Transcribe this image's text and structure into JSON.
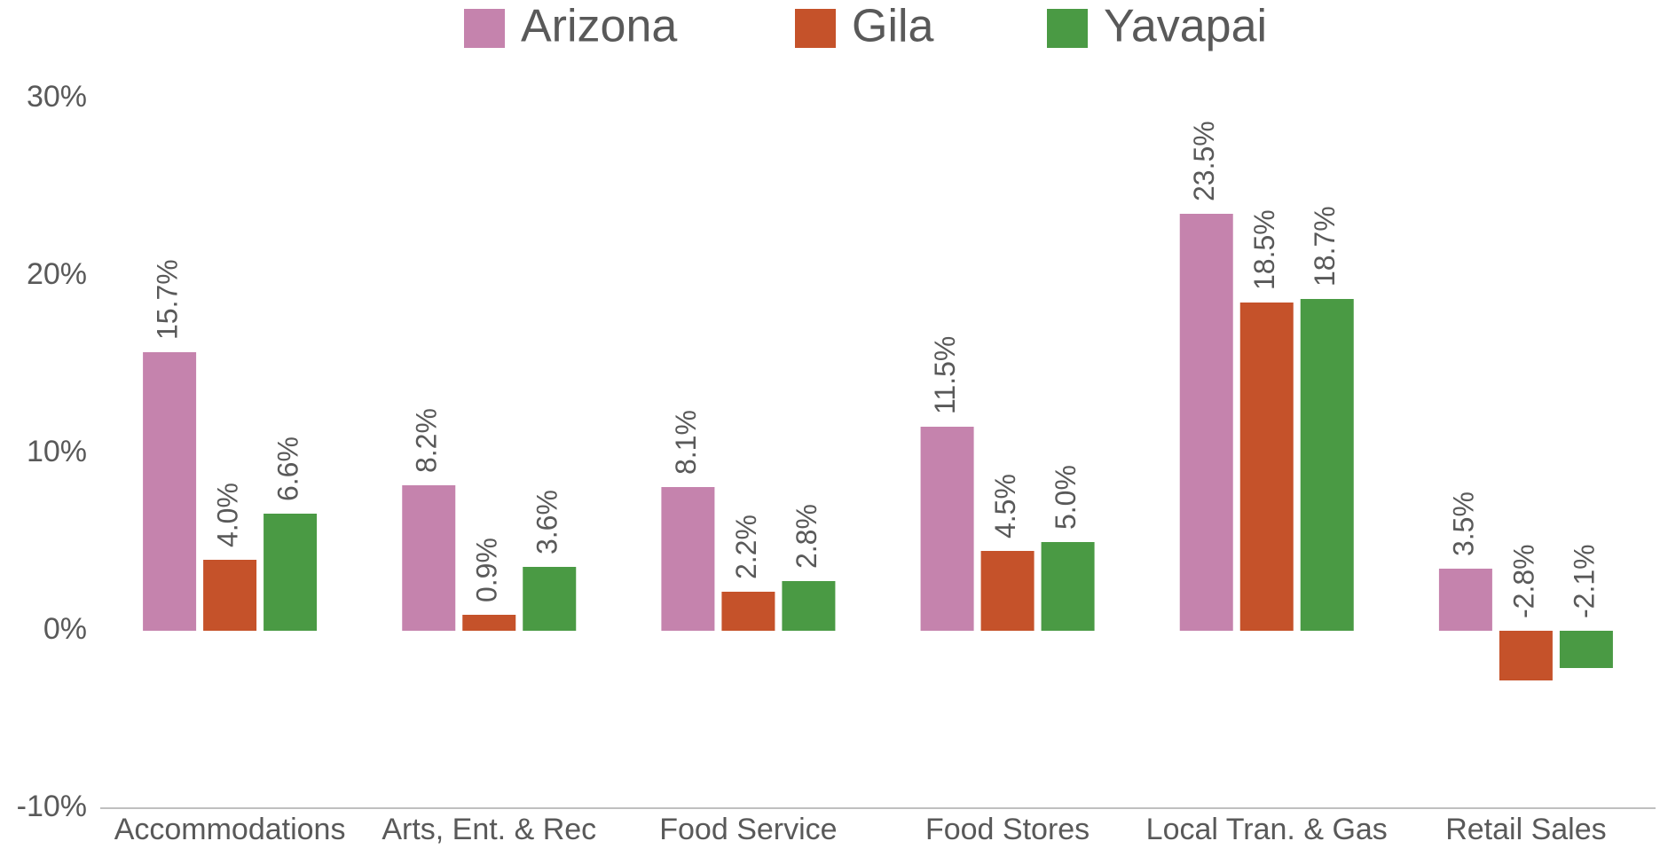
{
  "chart_data": {
    "type": "bar",
    "categories": [
      "Accommodations",
      "Arts, Ent. & Rec",
      "Food Service",
      "Food Stores",
      "Local Tran. & Gas",
      "Retail Sales"
    ],
    "series": [
      {
        "name": "Arizona",
        "color": "#c583ad",
        "values": [
          15.7,
          8.2,
          8.1,
          11.5,
          23.5,
          3.5
        ],
        "value_labels": [
          "15.7%",
          "8.2%",
          "8.1%",
          "11.5%",
          "23.5%",
          "3.5%"
        ]
      },
      {
        "name": "Gila",
        "color": "#c5522a",
        "values": [
          4.0,
          0.9,
          2.2,
          4.5,
          18.5,
          -2.8
        ],
        "value_labels": [
          "4.0%",
          "0.9%",
          "2.2%",
          "4.5%",
          "18.5%",
          "-2.8%"
        ]
      },
      {
        "name": "Yavapai",
        "color": "#4a9a44",
        "values": [
          6.6,
          3.6,
          2.8,
          5.0,
          18.7,
          -2.1
        ],
        "value_labels": [
          "6.6%",
          "3.6%",
          "2.8%",
          "5.0%",
          "18.7%",
          "-2.1%"
        ]
      }
    ],
    "ylim": [
      -10,
      30
    ],
    "yticks": [
      {
        "value": -10,
        "label": "-10%"
      },
      {
        "value": 0,
        "label": "0%"
      },
      {
        "value": 10,
        "label": "10%"
      },
      {
        "value": 20,
        "label": "20%"
      },
      {
        "value": 30,
        "label": "30%"
      }
    ],
    "grid": false,
    "legend": "top"
  }
}
